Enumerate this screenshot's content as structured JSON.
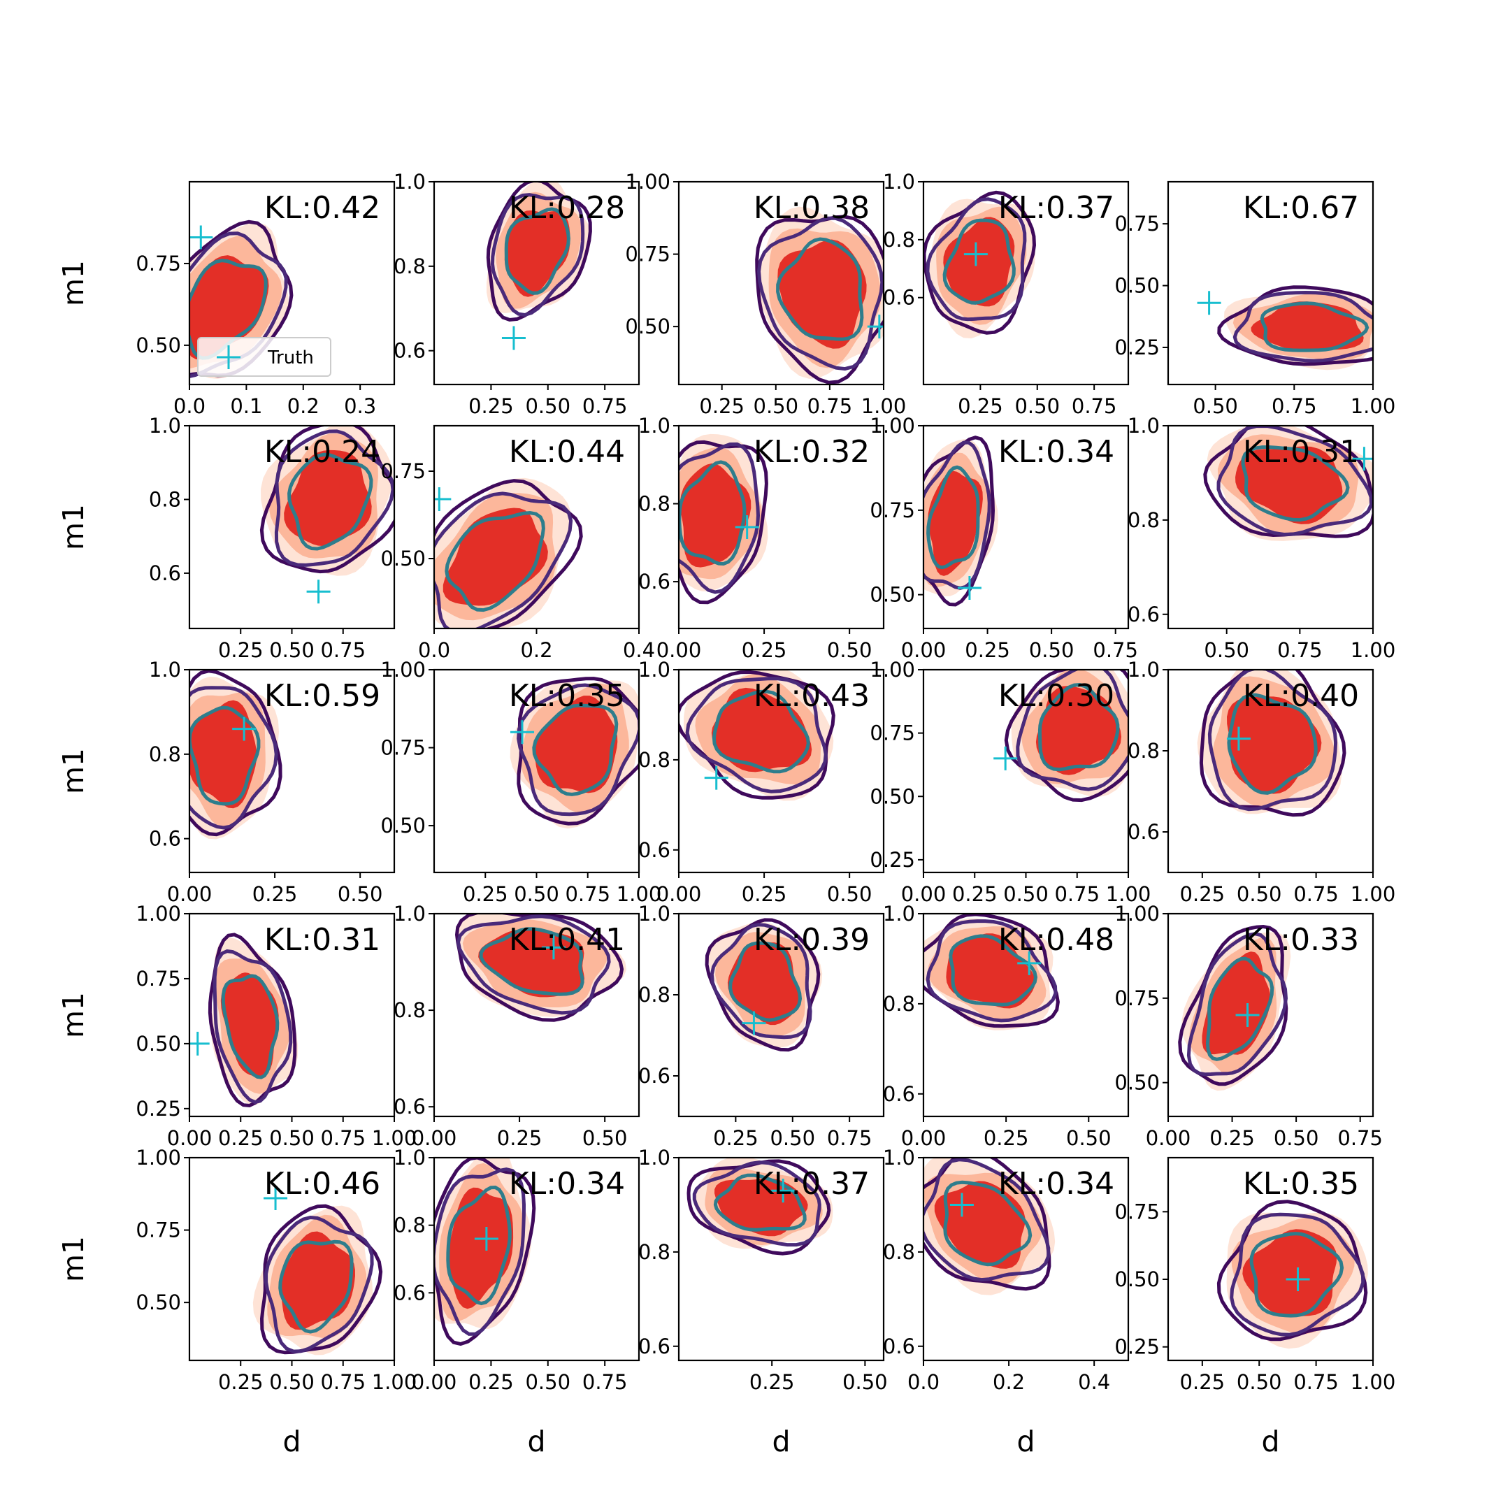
{
  "chart_data": {
    "type": "contour",
    "layout": {
      "rows": 5,
      "cols": 5
    },
    "xlabel": "d",
    "ylabel": "m1",
    "legend": {
      "entries": [
        {
          "label": "Truth",
          "marker": "+",
          "color": "#17becf"
        }
      ],
      "placement": "lower-left of first panel"
    },
    "colors": {
      "filled_levels": [
        "#fee3d6",
        "#fcb79b",
        "#e32f27"
      ],
      "outer_line": "#3f0a5c",
      "middle_line": "#4a2a7a",
      "inner_line": "#2e7d8c",
      "truth_marker": "#17becf"
    },
    "panels": [
      {
        "kl": "KL:0.42",
        "xlim": [
          0.0,
          0.36
        ],
        "ylim": [
          0.38,
          1.0
        ],
        "xticks": [
          0.0,
          0.1,
          0.2,
          0.3
        ],
        "xtick_labels": [
          "0.0",
          "0.1",
          "0.2",
          "0.3"
        ],
        "yticks": [
          0.5,
          0.75
        ],
        "ytick_labels": [
          "0.50",
          "0.75"
        ],
        "truth": [
          0.02,
          0.83
        ],
        "center": [
          0.06,
          0.62
        ],
        "spread": [
          0.07,
          0.15
        ],
        "tilt": -0.5
      },
      {
        "kl": "KL:0.28",
        "xlim": [
          0.0,
          0.9
        ],
        "ylim": [
          0.52,
          1.0
        ],
        "xticks": [
          0.25,
          0.5,
          0.75
        ],
        "xtick_labels": [
          "0.25",
          "0.50",
          "0.75"
        ],
        "yticks": [
          0.6,
          0.8,
          1.0
        ],
        "ytick_labels": [
          "0.6",
          "0.8",
          "1.0"
        ],
        "truth": [
          0.35,
          0.63
        ],
        "center": [
          0.45,
          0.84
        ],
        "spread": [
          0.14,
          0.1
        ],
        "tilt": -0.3
      },
      {
        "kl": "KL:0.38",
        "xlim": [
          0.05,
          1.0
        ],
        "ylim": [
          0.3,
          1.0
        ],
        "xticks": [
          0.25,
          0.5,
          0.75,
          1.0
        ],
        "xtick_labels": [
          "0.25",
          "0.50",
          "0.75",
          "1.00"
        ],
        "yticks": [
          0.5,
          0.75,
          1.0
        ],
        "ytick_labels": [
          "0.50",
          "0.75",
          "1.00"
        ],
        "truth": [
          0.98,
          0.5
        ],
        "center": [
          0.72,
          0.62
        ],
        "spread": [
          0.2,
          0.18
        ],
        "tilt": 0.1
      },
      {
        "kl": "KL:0.37",
        "xlim": [
          0.0,
          0.9
        ],
        "ylim": [
          0.3,
          1.0
        ],
        "xticks": [
          0.25,
          0.5,
          0.75
        ],
        "xtick_labels": [
          "0.25",
          "0.50",
          "0.75"
        ],
        "yticks": [
          0.6,
          0.8,
          1.0
        ],
        "ytick_labels": [
          "0.6",
          "0.8",
          "1.0"
        ],
        "truth": [
          0.23,
          0.75
        ],
        "center": [
          0.25,
          0.72
        ],
        "spread": [
          0.15,
          0.15
        ],
        "tilt": -0.2
      },
      {
        "kl": "KL:0.67",
        "xlim": [
          0.35,
          1.0
        ],
        "ylim": [
          0.1,
          0.92
        ],
        "xticks": [
          0.5,
          0.75,
          1.0
        ],
        "xtick_labels": [
          "0.50",
          "0.75",
          "1.00"
        ],
        "yticks": [
          0.25,
          0.5,
          0.75
        ],
        "ytick_labels": [
          "0.25",
          "0.50",
          "0.75"
        ],
        "truth": [
          0.48,
          0.43
        ],
        "center": [
          0.8,
          0.33
        ],
        "spread": [
          0.17,
          0.1
        ],
        "tilt": 0.2
      },
      {
        "kl": "KL:0.24",
        "xlim": [
          0.0,
          1.0
        ],
        "ylim": [
          0.45,
          1.0
        ],
        "xticks": [
          0.25,
          0.5,
          0.75
        ],
        "xtick_labels": [
          "0.25",
          "0.50",
          "0.75"
        ],
        "yticks": [
          0.6,
          0.8,
          1.0
        ],
        "ytick_labels": [
          "0.6",
          "0.8",
          "1.0"
        ],
        "truth": [
          0.63,
          0.55
        ],
        "center": [
          0.68,
          0.8
        ],
        "spread": [
          0.2,
          0.13
        ],
        "tilt": -0.2
      },
      {
        "kl": "KL:0.44",
        "xlim": [
          0.0,
          0.4
        ],
        "ylim": [
          0.3,
          0.88
        ],
        "xticks": [
          0.0,
          0.2,
          0.4
        ],
        "xtick_labels": [
          "0.0",
          "0.2",
          "0.4"
        ],
        "yticks": [
          0.5,
          0.75
        ],
        "ytick_labels": [
          "0.50",
          "0.75"
        ],
        "truth": [
          0.01,
          0.67
        ],
        "center": [
          0.12,
          0.5
        ],
        "spread": [
          0.09,
          0.14
        ],
        "tilt": -0.6
      },
      {
        "kl": "KL:0.32",
        "xlim": [
          0.0,
          0.6
        ],
        "ylim": [
          0.48,
          1.0
        ],
        "xticks": [
          0.0,
          0.25,
          0.5
        ],
        "xtick_labels": [
          "0.00",
          "0.25",
          "0.50"
        ],
        "yticks": [
          0.6,
          0.8,
          1.0
        ],
        "ytick_labels": [
          "0.6",
          "0.8",
          "1.0"
        ],
        "truth": [
          0.2,
          0.74
        ],
        "center": [
          0.1,
          0.77
        ],
        "spread": [
          0.1,
          0.13
        ],
        "tilt": -0.1
      },
      {
        "kl": "KL:0.34",
        "xlim": [
          0.0,
          0.8
        ],
        "ylim": [
          0.4,
          1.0
        ],
        "xticks": [
          0.0,
          0.25,
          0.5,
          0.75
        ],
        "xtick_labels": [
          "0.00",
          "0.25",
          "0.50",
          "0.75"
        ],
        "yticks": [
          0.5,
          0.75,
          1.0
        ],
        "ytick_labels": [
          "0.50",
          "0.75",
          "1.00"
        ],
        "truth": [
          0.18,
          0.52
        ],
        "center": [
          0.12,
          0.72
        ],
        "spread": [
          0.1,
          0.15
        ],
        "tilt": -0.2
      },
      {
        "kl": "KL:0.31",
        "xlim": [
          0.3,
          1.0
        ],
        "ylim": [
          0.57,
          1.0
        ],
        "xticks": [
          0.5,
          0.75,
          1.0
        ],
        "xtick_labels": [
          "0.50",
          "0.75",
          "1.00"
        ],
        "yticks": [
          0.6,
          0.8,
          1.0
        ],
        "ytick_labels": [
          "0.6",
          "0.8",
          "1.0"
        ],
        "truth": [
          0.97,
          0.93
        ],
        "center": [
          0.72,
          0.88
        ],
        "spread": [
          0.18,
          0.08
        ],
        "tilt": 0.4
      },
      {
        "kl": "KL:0.59",
        "xlim": [
          0.0,
          0.6
        ],
        "ylim": [
          0.52,
          1.0
        ],
        "xticks": [
          0.0,
          0.25,
          0.5
        ],
        "xtick_labels": [
          "0.00",
          "0.25",
          "0.50"
        ],
        "yticks": [
          0.6,
          0.8,
          1.0
        ],
        "ytick_labels": [
          "0.6",
          "0.8",
          "1.0"
        ],
        "truth": [
          0.16,
          0.86
        ],
        "center": [
          0.1,
          0.8
        ],
        "spread": [
          0.1,
          0.12
        ],
        "tilt": 0.0
      },
      {
        "kl": "KL:0.35",
        "xlim": [
          0.0,
          1.0
        ],
        "ylim": [
          0.35,
          1.0
        ],
        "xticks": [
          0.25,
          0.5,
          0.75,
          1.0
        ],
        "xtick_labels": [
          "0.25",
          "0.50",
          "0.75",
          "1.00"
        ],
        "yticks": [
          0.5,
          0.75,
          1.0
        ],
        "ytick_labels": [
          "0.50",
          "0.75",
          "1.00"
        ],
        "truth": [
          0.43,
          0.8
        ],
        "center": [
          0.7,
          0.75
        ],
        "spread": [
          0.2,
          0.15
        ],
        "tilt": -0.2
      },
      {
        "kl": "KL:0.43",
        "xlim": [
          0.0,
          0.6
        ],
        "ylim": [
          0.55,
          1.0
        ],
        "xticks": [
          0.0,
          0.25,
          0.5
        ],
        "xtick_labels": [
          "0.00",
          "0.25",
          "0.50"
        ],
        "yticks": [
          0.6,
          0.8,
          1.0
        ],
        "ytick_labels": [
          "0.6",
          "0.8",
          "1.0"
        ],
        "truth": [
          0.11,
          0.76
        ],
        "center": [
          0.24,
          0.86
        ],
        "spread": [
          0.14,
          0.09
        ],
        "tilt": 0.3
      },
      {
        "kl": "KL:0.30",
        "xlim": [
          0.0,
          1.0
        ],
        "ylim": [
          0.2,
          1.0
        ],
        "xticks": [
          0.0,
          0.25,
          0.5,
          0.75,
          1.0
        ],
        "xtick_labels": [
          "0.00",
          "0.25",
          "0.50",
          "0.75",
          "1.00"
        ],
        "yticks": [
          0.25,
          0.5,
          0.75,
          1.0
        ],
        "ytick_labels": [
          "0.25",
          "0.50",
          "0.75",
          "1.00"
        ],
        "truth": [
          0.4,
          0.65
        ],
        "center": [
          0.75,
          0.76
        ],
        "spread": [
          0.2,
          0.17
        ],
        "tilt": -0.1
      },
      {
        "kl": "KL:0.40",
        "xlim": [
          0.1,
          1.0
        ],
        "ylim": [
          0.5,
          1.0
        ],
        "xticks": [
          0.25,
          0.5,
          0.75,
          1.0
        ],
        "xtick_labels": [
          "0.25",
          "0.50",
          "0.75",
          "1.00"
        ],
        "yticks": [
          0.6,
          0.8,
          1.0
        ],
        "ytick_labels": [
          "0.6",
          "0.8",
          "1.0"
        ],
        "truth": [
          0.41,
          0.83
        ],
        "center": [
          0.55,
          0.82
        ],
        "spread": [
          0.2,
          0.12
        ],
        "tilt": 0.1
      },
      {
        "kl": "KL:0.31",
        "xlim": [
          0.0,
          1.0
        ],
        "ylim": [
          0.22,
          1.0
        ],
        "xticks": [
          0.0,
          0.25,
          0.5,
          0.75,
          1.0
        ],
        "xtick_labels": [
          "0.00",
          "0.25",
          "0.50",
          "0.75",
          "1.00"
        ],
        "yticks": [
          0.25,
          0.5,
          0.75,
          1.0
        ],
        "ytick_labels": [
          "0.25",
          "0.50",
          "0.75",
          "1.00"
        ],
        "truth": [
          0.04,
          0.5
        ],
        "center": [
          0.3,
          0.58
        ],
        "spread": [
          0.13,
          0.2
        ],
        "tilt": 0.2
      },
      {
        "kl": "KL:0.41",
        "xlim": [
          0.0,
          0.6
        ],
        "ylim": [
          0.58,
          1.0
        ],
        "xticks": [
          0.0,
          0.25,
          0.5
        ],
        "xtick_labels": [
          "0.00",
          "0.25",
          "0.50"
        ],
        "yticks": [
          0.6,
          0.8,
          1.0
        ],
        "ytick_labels": [
          "0.6",
          "0.8",
          "1.0"
        ],
        "truth": [
          0.35,
          0.93
        ],
        "center": [
          0.3,
          0.9
        ],
        "spread": [
          0.15,
          0.07
        ],
        "tilt": 0.5
      },
      {
        "kl": "KL:0.39",
        "xlim": [
          0.0,
          0.9
        ],
        "ylim": [
          0.5,
          1.0
        ],
        "xticks": [
          0.25,
          0.5,
          0.75
        ],
        "xtick_labels": [
          "0.25",
          "0.50",
          "0.75"
        ],
        "yticks": [
          0.6,
          0.8,
          1.0
        ],
        "ytick_labels": [
          "0.6",
          "0.8",
          "1.0"
        ],
        "truth": [
          0.33,
          0.73
        ],
        "center": [
          0.38,
          0.83
        ],
        "spread": [
          0.15,
          0.1
        ],
        "tilt": 0.2
      },
      {
        "kl": "KL:0.48",
        "xlim": [
          0.0,
          0.62
        ],
        "ylim": [
          0.55,
          1.0
        ],
        "xticks": [
          0.0,
          0.25,
          0.5
        ],
        "xtick_labels": [
          "0.00",
          "0.25",
          "0.50"
        ],
        "yticks": [
          0.6,
          0.8,
          1.0
        ],
        "ytick_labels": [
          "0.6",
          "0.8",
          "1.0"
        ],
        "truth": [
          0.32,
          0.89
        ],
        "center": [
          0.2,
          0.87
        ],
        "spread": [
          0.13,
          0.08
        ],
        "tilt": 0.4
      },
      {
        "kl": "KL:0.33",
        "xlim": [
          0.0,
          0.8
        ],
        "ylim": [
          0.4,
          1.0
        ],
        "xticks": [
          0.0,
          0.25,
          0.5,
          0.75
        ],
        "xtick_labels": [
          "0.00",
          "0.25",
          "0.50",
          "0.75"
        ],
        "yticks": [
          0.5,
          0.75,
          1.0
        ],
        "ytick_labels": [
          "0.50",
          "0.75",
          "1.00"
        ],
        "truth": [
          0.31,
          0.7
        ],
        "center": [
          0.27,
          0.72
        ],
        "spread": [
          0.12,
          0.15
        ],
        "tilt": -0.4
      },
      {
        "kl": "KL:0.46",
        "xlim": [
          0.0,
          1.0
        ],
        "ylim": [
          0.3,
          1.0
        ],
        "xticks": [
          0.25,
          0.5,
          0.75,
          1.0
        ],
        "xtick_labels": [
          "0.25",
          "0.50",
          "0.75",
          "1.00"
        ],
        "yticks": [
          0.5,
          0.75,
          1.0
        ],
        "ytick_labels": [
          "0.50",
          "0.75",
          "1.00"
        ],
        "truth": [
          0.42,
          0.86
        ],
        "center": [
          0.62,
          0.57
        ],
        "spread": [
          0.18,
          0.16
        ],
        "tilt": -0.2
      },
      {
        "kl": "KL:0.34",
        "xlim": [
          0.0,
          0.9
        ],
        "ylim": [
          0.4,
          1.0
        ],
        "xticks": [
          0.0,
          0.25,
          0.5,
          0.75
        ],
        "xtick_labels": [
          "0.00",
          "0.25",
          "0.50",
          "0.75"
        ],
        "yticks": [
          0.6,
          0.8,
          1.0
        ],
        "ytick_labels": [
          "0.6",
          "0.8",
          "1.0"
        ],
        "truth": [
          0.23,
          0.76
        ],
        "center": [
          0.2,
          0.74
        ],
        "spread": [
          0.14,
          0.17
        ],
        "tilt": -0.2
      },
      {
        "kl": "KL:0.37",
        "xlim": [
          0.0,
          0.55
        ],
        "ylim": [
          0.57,
          1.0
        ],
        "xticks": [
          0.25,
          0.5
        ],
        "xtick_labels": [
          "0.25",
          "0.50"
        ],
        "yticks": [
          0.6,
          0.8,
          1.0
        ],
        "ytick_labels": [
          "0.6",
          "0.8",
          "1.0"
        ],
        "truth": [
          0.28,
          0.93
        ],
        "center": [
          0.22,
          0.9
        ],
        "spread": [
          0.12,
          0.06
        ],
        "tilt": 0.4
      },
      {
        "kl": "KL:0.34",
        "xlim": [
          0.0,
          0.48
        ],
        "ylim": [
          0.57,
          1.0
        ],
        "xticks": [
          0.0,
          0.2,
          0.4
        ],
        "xtick_labels": [
          "0.0",
          "0.2",
          "0.4"
        ],
        "yticks": [
          0.6,
          0.8,
          1.0
        ],
        "ytick_labels": [
          "0.6",
          "0.8",
          "1.0"
        ],
        "truth": [
          0.09,
          0.9
        ],
        "center": [
          0.14,
          0.86
        ],
        "spread": [
          0.1,
          0.09
        ],
        "tilt": 0.4
      },
      {
        "kl": "KL:0.35",
        "xlim": [
          0.1,
          1.0
        ],
        "ylim": [
          0.2,
          0.95
        ],
        "xticks": [
          0.25,
          0.5,
          0.75,
          1.0
        ],
        "xtick_labels": [
          "0.25",
          "0.50",
          "0.75",
          "1.00"
        ],
        "yticks": [
          0.25,
          0.5,
          0.75
        ],
        "ytick_labels": [
          "0.25",
          "0.50",
          "0.75"
        ],
        "truth": [
          0.67,
          0.5
        ],
        "center": [
          0.65,
          0.52
        ],
        "spread": [
          0.2,
          0.16
        ],
        "tilt": -0.1
      }
    ]
  }
}
